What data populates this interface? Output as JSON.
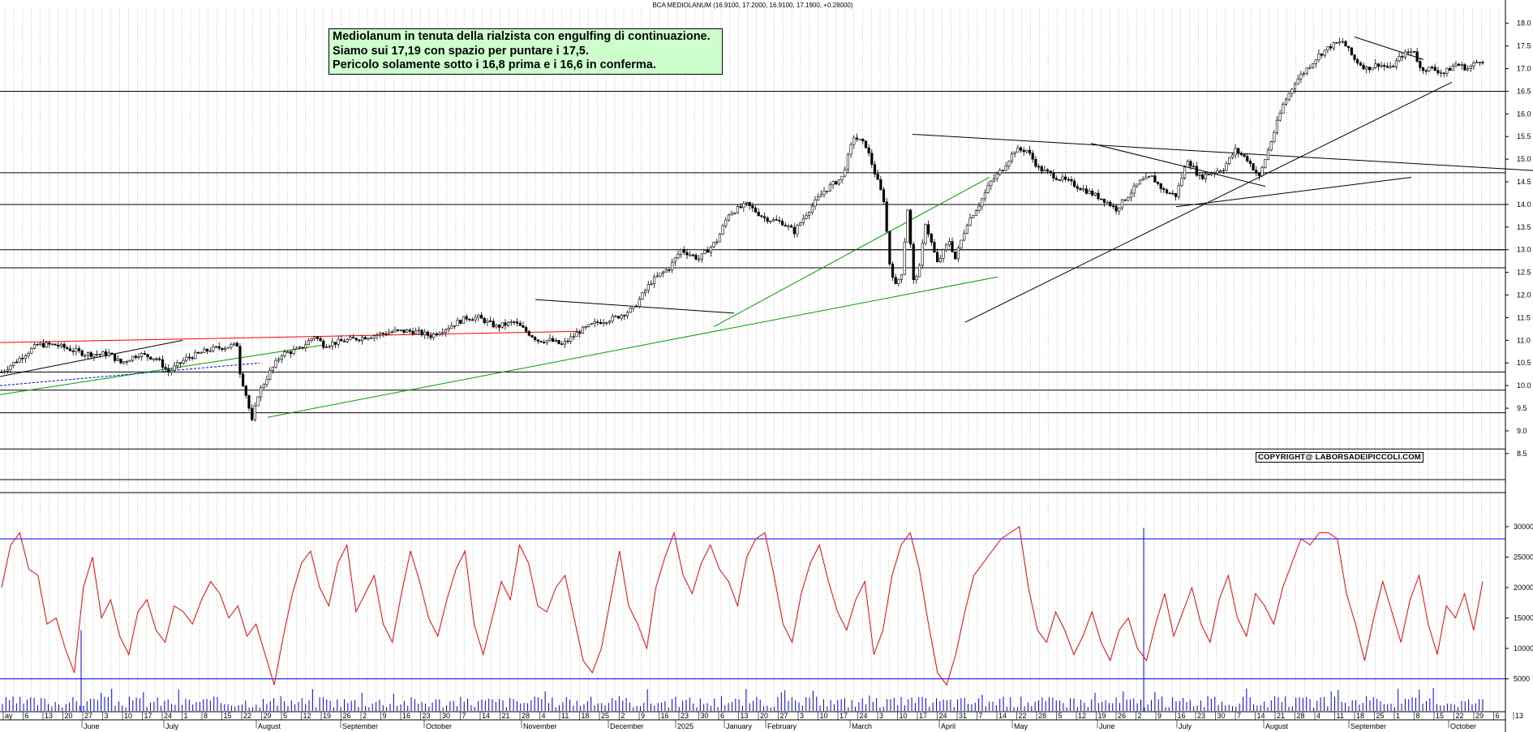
{
  "header": {
    "instrument": "BCA MEDIOLANUM",
    "ohlc_text": "(16.9100, 17.2000, 16.9100, 17.1900, +0.28000)"
  },
  "annotation": {
    "line1": "Mediolanum in tenuta della rialzista con engulfing di continuazione.",
    "line2": "Siamo sui 17,19 con spazio per puntare i 17,5.",
    "line3": "Pericolo solamente sotto i 16,8 prima e i 16,6 in conferma."
  },
  "copyright": "COPYRIGHT@ LABORSADEIPICCOLI.COM",
  "colors": {
    "candle": "#000000",
    "oscillator": "#ff0000",
    "osc_levels": "#0000ff",
    "green_trendline": "#00a000",
    "red_trendline": "#ff0000",
    "blue_dashed": "#0000ff",
    "grid": "#9a9a9a",
    "note_bg": "#ccffcc"
  },
  "chart_data": [
    {
      "type": "candlestick",
      "panel": "price",
      "y_axis_ticks": [
        "18.0",
        "17.5",
        "17.0",
        "16.5",
        "16.0",
        "15.5",
        "15.0",
        "14.5",
        "14.0",
        "13.5",
        "13.0",
        "12.5",
        "12.0",
        "11.5",
        "11.0",
        "10.5",
        "10.0",
        "9.5",
        "9.0",
        "8.5"
      ],
      "ylim": [
        8.3,
        18.3
      ],
      "series": [
        {
          "start": 10.3,
          "points": [
            [
              0,
              10.3
            ],
            [
              12,
              10.9
            ],
            [
              18,
              10.9
            ],
            [
              28,
              10.7
            ],
            [
              36,
              10.7
            ],
            [
              40,
              10.5
            ],
            [
              46,
              10.7
            ],
            [
              52,
              10.6
            ],
            [
              56,
              10.3
            ],
            [
              62,
              10.6
            ],
            [
              70,
              10.8
            ],
            [
              79,
              10.9
            ],
            [
              80,
              10.3
            ],
            [
              82,
              9.8
            ],
            [
              84,
              9.2
            ],
            [
              86,
              9.8
            ],
            [
              90,
              10.3
            ],
            [
              94,
              10.7
            ],
            [
              100,
              10.8
            ],
            [
              105,
              11.1
            ],
            [
              108,
              10.9
            ],
            [
              116,
              11.0
            ],
            [
              124,
              11.1
            ],
            [
              132,
              11.2
            ],
            [
              138,
              11.2
            ],
            [
              144,
              11.1
            ],
            [
              150,
              11.3
            ],
            [
              156,
              11.5
            ],
            [
              160,
              11.5
            ],
            [
              166,
              11.3
            ],
            [
              172,
              11.4
            ],
            [
              176,
              11.2
            ],
            [
              180,
              11.0
            ],
            [
              184,
              11.0
            ],
            [
              188,
              10.9
            ],
            [
              194,
              11.2
            ],
            [
              200,
              11.4
            ],
            [
              206,
              11.5
            ],
            [
              212,
              11.7
            ],
            [
              218,
              12.3
            ],
            [
              224,
              12.6
            ],
            [
              228,
              13.0
            ],
            [
              234,
              12.8
            ],
            [
              240,
              13.2
            ],
            [
              244,
              13.8
            ],
            [
              250,
              14.0
            ],
            [
              256,
              13.7
            ],
            [
              262,
              13.6
            ],
            [
              266,
              13.4
            ],
            [
              270,
              13.8
            ],
            [
              276,
              14.3
            ],
            [
              282,
              14.6
            ],
            [
              286,
              15.5
            ],
            [
              290,
              15.3
            ],
            [
              294,
              14.5
            ],
            [
              296,
              14.1
            ],
            [
              298,
              12.7
            ],
            [
              300,
              12.2
            ],
            [
              302,
              12.5
            ],
            [
              304,
              13.9
            ],
            [
              306,
              12.3
            ],
            [
              308,
              12.6
            ],
            [
              310,
              13.6
            ],
            [
              314,
              12.7
            ],
            [
              318,
              13.2
            ],
            [
              320,
              12.8
            ],
            [
              324,
              13.6
            ],
            [
              328,
              14.0
            ],
            [
              332,
              14.5
            ],
            [
              336,
              14.8
            ],
            [
              340,
              15.2
            ],
            [
              344,
              15.2
            ],
            [
              348,
              14.8
            ],
            [
              354,
              14.6
            ],
            [
              358,
              14.5
            ],
            [
              364,
              14.3
            ],
            [
              370,
              14.1
            ],
            [
              374,
              13.9
            ],
            [
              378,
              14.2
            ],
            [
              382,
              14.5
            ],
            [
              386,
              14.6
            ],
            [
              390,
              14.3
            ],
            [
              394,
              14.2
            ],
            [
              398,
              15.0
            ],
            [
              402,
              14.6
            ],
            [
              406,
              14.7
            ],
            [
              410,
              14.8
            ],
            [
              414,
              15.2
            ],
            [
              418,
              15.0
            ],
            [
              422,
              14.6
            ],
            [
              426,
              15.4
            ],
            [
              430,
              16.2
            ],
            [
              434,
              16.7
            ],
            [
              438,
              17.0
            ],
            [
              442,
              17.3
            ],
            [
              446,
              17.5
            ],
            [
              450,
              17.6
            ],
            [
              454,
              17.2
            ],
            [
              458,
              17.0
            ],
            [
              462,
              17.1
            ],
            [
              466,
              17.0
            ],
            [
              470,
              17.3
            ],
            [
              474,
              17.4
            ],
            [
              476,
              17.0
            ],
            [
              480,
              17.0
            ],
            [
              484,
              16.9
            ],
            [
              488,
              17.1
            ],
            [
              492,
              17.0
            ],
            [
              496,
              17.19
            ]
          ]
        }
      ],
      "horizontal_levels": [
        8.6,
        9.4,
        9.9,
        10.3,
        12.6,
        13.0,
        14.0,
        14.7,
        16.5
      ],
      "x_date_labels": [
        "ay",
        "6",
        "13",
        "20",
        "27",
        "3",
        "10",
        "17",
        "24",
        "1",
        "8",
        "15",
        "22",
        "29",
        "5",
        "12",
        "19",
        "26",
        "2",
        "9",
        "16",
        "23",
        "30",
        "7",
        "14",
        "21",
        "28",
        "4",
        "11",
        "18",
        "25",
        "2",
        "9",
        "16",
        "23",
        "30",
        "6",
        "13",
        "20",
        "27",
        "3",
        "10",
        "17",
        "24",
        "3",
        "10",
        "17",
        "24",
        "31",
        "7",
        "14",
        "22",
        "28",
        "5",
        "12",
        "19",
        "26",
        "2",
        "9",
        "16",
        "23",
        "30",
        "7",
        "14",
        "21",
        "28",
        "4",
        "11",
        "18",
        "25",
        "1",
        "8",
        "15",
        "22",
        "29",
        "6",
        "13"
      ],
      "x_month_labels": [
        "June",
        "July",
        "August",
        "September",
        "October",
        "November",
        "December",
        "2025",
        "January",
        "February",
        "March",
        "April",
        "May",
        "June",
        "July",
        "August",
        "September",
        "October"
      ]
    },
    {
      "type": "line",
      "panel": "oscillator",
      "y_axis_ticks": [
        "30000",
        "25000",
        "20000",
        "15000",
        "10000",
        "5000"
      ],
      "ylim": [
        0,
        32000
      ],
      "levels": [
        28000,
        5000
      ],
      "series": [
        {
          "name": "",
          "values": [
            20000,
            27000,
            29000,
            23000,
            22000,
            14000,
            15000,
            10000,
            6000,
            20000,
            25000,
            15000,
            18000,
            12000,
            9000,
            16000,
            18000,
            13000,
            11000,
            17000,
            16000,
            14000,
            18000,
            21000,
            19000,
            15000,
            17000,
            12000,
            14000,
            9000,
            4000,
            12000,
            19000,
            24000,
            26000,
            20000,
            17000,
            24000,
            27000,
            16000,
            19000,
            22000,
            14000,
            11000,
            19000,
            26000,
            21000,
            15000,
            12000,
            18000,
            23000,
            26000,
            14000,
            9000,
            15000,
            21000,
            18000,
            27000,
            24000,
            17000,
            16000,
            20000,
            22000,
            15000,
            8000,
            6000,
            10000,
            18000,
            26000,
            17000,
            14000,
            10000,
            20000,
            25000,
            29000,
            22000,
            19000,
            24000,
            27000,
            23000,
            21000,
            17000,
            25000,
            28000,
            29000,
            22000,
            14000,
            11000,
            19000,
            24000,
            27000,
            21000,
            16000,
            13000,
            18000,
            21000,
            9000,
            13000,
            22000,
            27000,
            29000,
            23000,
            14000,
            6000,
            4000,
            9000,
            16000,
            22000,
            24000,
            26000,
            28000,
            29000,
            30000,
            20000,
            13000,
            11000,
            16000,
            13000,
            9000,
            12000,
            16000,
            11000,
            8000,
            13000,
            15000,
            10000,
            8000,
            14000,
            19000,
            12000,
            16000,
            20000,
            14000,
            11000,
            18000,
            22000,
            15000,
            12000,
            19000,
            17000,
            14000,
            20000,
            24000,
            28000,
            27000,
            29000,
            29000,
            28000,
            19000,
            14000,
            8000,
            15000,
            21000,
            16000,
            11000,
            18000,
            22000,
            14000,
            9000,
            17000,
            15000,
            19000,
            13000,
            21000
          ]
        }
      ]
    }
  ]
}
